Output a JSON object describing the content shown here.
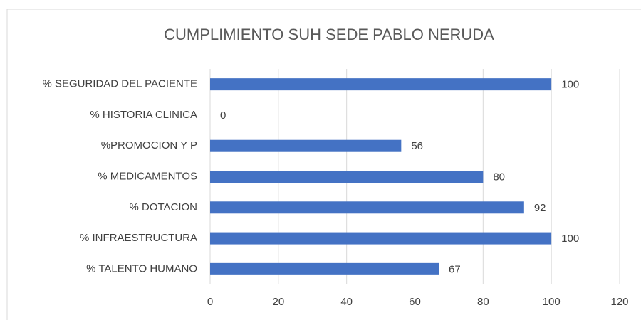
{
  "chart_data": {
    "type": "hbar",
    "title": "CUMPLIMIENTO SUH SEDE PABLO NERUDA",
    "categories": [
      "% SEGURIDAD DEL PACIENTE",
      "% HISTORIA CLINICA",
      "%PROMOCION Y P",
      "% MEDICAMENTOS",
      "% DOTACION",
      "% INFRAESTRUCTURA",
      "% TALENTO HUMANO"
    ],
    "values": [
      100,
      0,
      56,
      80,
      92,
      100,
      67
    ],
    "color": "#4472c4",
    "xlim": [
      0,
      120
    ],
    "xticks": [
      0,
      20,
      40,
      60,
      80,
      100,
      120
    ],
    "grid": true
  }
}
